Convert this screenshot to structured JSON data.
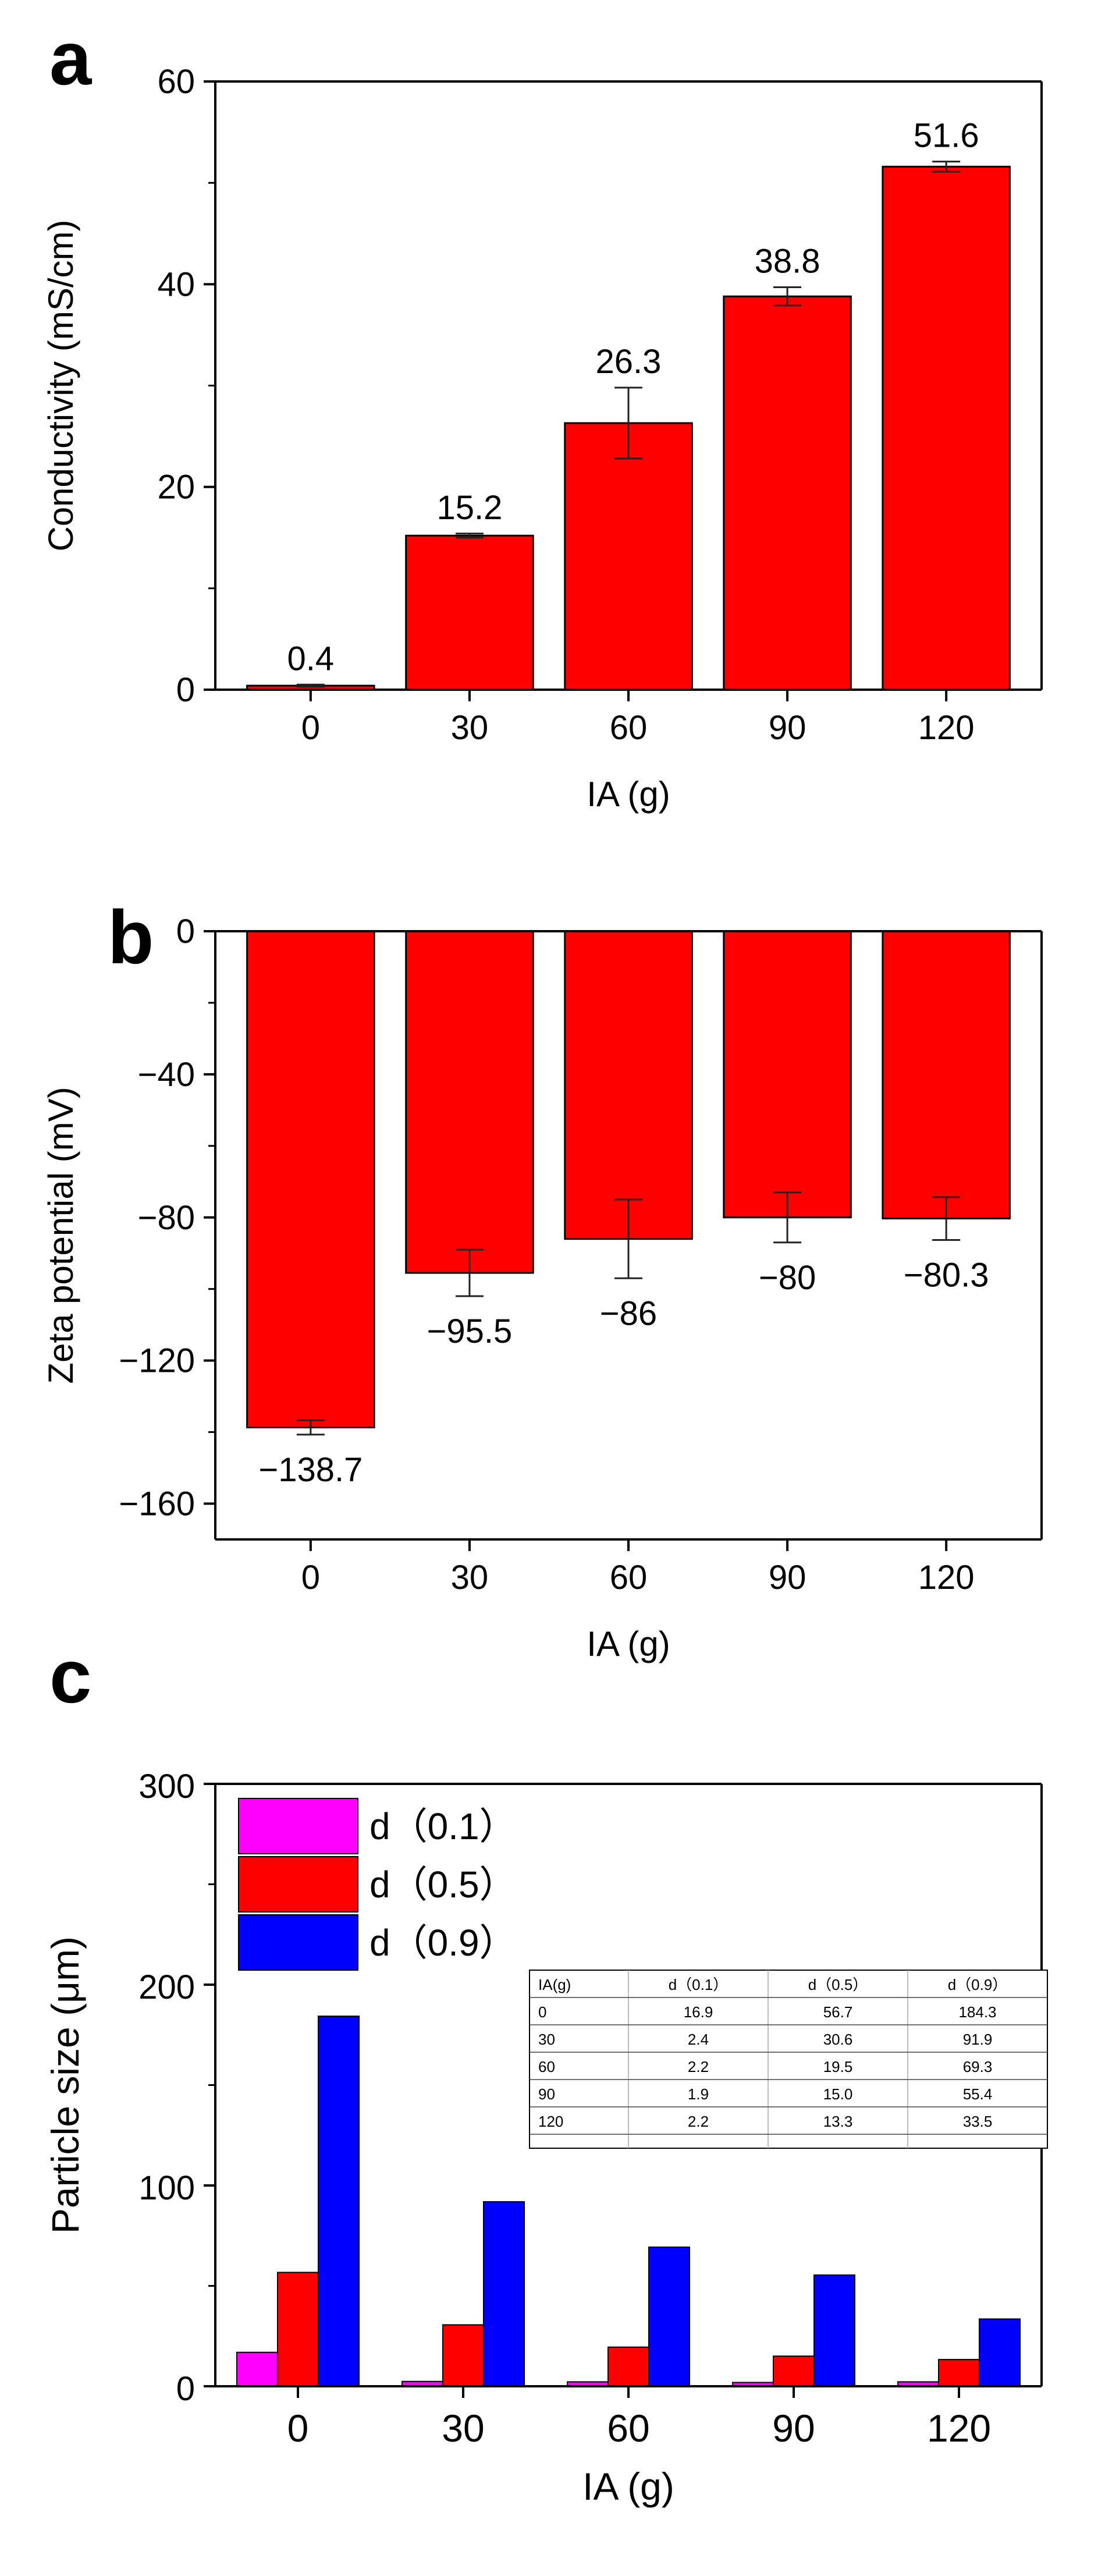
{
  "colors": {
    "bar_red": "#ff0000",
    "d01": "#ff00ff",
    "d05": "#ff0000",
    "d09": "#0000ff"
  },
  "chart_data": [
    {
      "panel": "a",
      "type": "bar",
      "categories": [
        "0",
        "30",
        "60",
        "90",
        "120"
      ],
      "values": [
        0.4,
        15.2,
        26.3,
        38.8,
        51.6
      ],
      "error": [
        0.1,
        0.2,
        3.5,
        0.9,
        0.5
      ],
      "data_labels": [
        "0.4",
        "15.2",
        "26.3",
        "38.8",
        "51.6"
      ],
      "xlabel": "IA (g)",
      "ylabel": "Conductivity (mS/cm)",
      "ylim": [
        0,
        60
      ],
      "yticks": [
        0,
        20,
        40,
        60
      ],
      "grid": false
    },
    {
      "panel": "b",
      "type": "bar",
      "categories": [
        "0",
        "30",
        "60",
        "90",
        "120"
      ],
      "values": [
        -138.7,
        -95.5,
        -86,
        -80,
        -80.3
      ],
      "error": [
        2.0,
        6.5,
        11.0,
        7.0,
        6.0
      ],
      "data_labels": [
        "−138.7",
        "−95.5",
        "−86",
        "−80",
        "−80.3"
      ],
      "xlabel": "IA (g)",
      "ylabel": "Zeta potential (mV)",
      "ylim": [
        -170,
        0
      ],
      "yticks": [
        0,
        -40,
        -80,
        -120,
        -160
      ],
      "ytick_labels": [
        "0",
        "−40",
        "−80",
        "−120",
        "−160"
      ],
      "grid": false
    },
    {
      "panel": "c",
      "type": "bar",
      "categories": [
        "0",
        "30",
        "60",
        "90",
        "120"
      ],
      "series": [
        {
          "name": "d（0.1）",
          "values": [
            16.9,
            2.4,
            2.2,
            1.9,
            2.2
          ]
        },
        {
          "name": "d（0.5）",
          "values": [
            56.7,
            30.6,
            19.5,
            15.0,
            13.3
          ]
        },
        {
          "name": "d（0.9）",
          "values": [
            184.3,
            91.9,
            69.3,
            55.4,
            33.5
          ]
        }
      ],
      "xlabel": "IA (g)",
      "ylabel": "Particle size (μm)",
      "ylim": [
        0,
        300
      ],
      "yticks": [
        0,
        100,
        200,
        300
      ],
      "legend": "top-left",
      "grid": false,
      "table": {
        "headers": [
          "IA(g)",
          "d（0.1）",
          "d（0.5）",
          "d（0.9）"
        ],
        "rows": [
          [
            "0",
            "16.9",
            "56.7",
            "184.3"
          ],
          [
            "30",
            "2.4",
            "30.6",
            "91.9"
          ],
          [
            "60",
            "2.2",
            "19.5",
            "69.3"
          ],
          [
            "90",
            "1.9",
            "15.0",
            "55.4"
          ],
          [
            "120",
            "2.2",
            "13.3",
            "33.5"
          ]
        ]
      }
    }
  ]
}
